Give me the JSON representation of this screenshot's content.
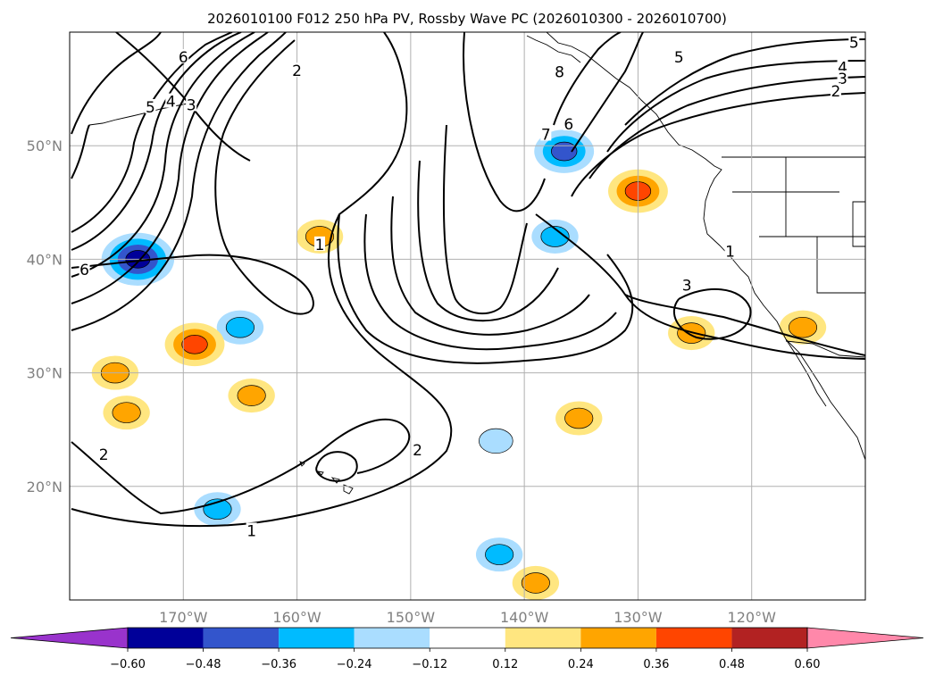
{
  "chart_data": {
    "type": "contour-map",
    "title": "2026010100 F012 250 hPa PV, Rossby Wave PC (2026010300 - 2026010700)",
    "x_axis": {
      "ticks": [
        -170,
        -160,
        -150,
        -140,
        -130,
        -120
      ],
      "tick_labels": [
        "170°W",
        "160°W",
        "150°W",
        "140°W",
        "130°W",
        "120°W"
      ],
      "range": [
        -180,
        -110
      ]
    },
    "y_axis": {
      "ticks": [
        20,
        30,
        40,
        50
      ],
      "tick_labels": [
        "20°N",
        "30°N",
        "40°N",
        "50°N"
      ],
      "range": [
        10,
        60
      ]
    },
    "contour_labels": [
      {
        "text": "6",
        "lon": -170,
        "lat": 57.8
      },
      {
        "text": "5",
        "lon": -172.9,
        "lat": 53.4
      },
      {
        "text": "4",
        "lon": -171.1,
        "lat": 53.9
      },
      {
        "text": "3",
        "lon": -169.3,
        "lat": 53.6
      },
      {
        "text": "2",
        "lon": -160,
        "lat": 56.6
      },
      {
        "text": "1",
        "lon": -158,
        "lat": 41.3
      },
      {
        "text": "6",
        "lon": -178.7,
        "lat": 39.1
      },
      {
        "text": "2",
        "lon": -177,
        "lat": 22.8
      },
      {
        "text": "1",
        "lon": -164,
        "lat": 16.1
      },
      {
        "text": "2",
        "lon": -149.4,
        "lat": 23.2
      },
      {
        "text": "8",
        "lon": -136.9,
        "lat": 56.5
      },
      {
        "text": "7",
        "lon": -138.1,
        "lat": 51
      },
      {
        "text": "6",
        "lon": -136.1,
        "lat": 51.9
      },
      {
        "text": "5",
        "lon": -126.4,
        "lat": 57.8
      },
      {
        "text": "5",
        "lon": -111,
        "lat": 59.1
      },
      {
        "text": "4",
        "lon": -112,
        "lat": 56.9
      },
      {
        "text": "3",
        "lon": -112,
        "lat": 55.9
      },
      {
        "text": "2",
        "lon": -112.6,
        "lat": 54.8
      },
      {
        "text": "1",
        "lon": -121.9,
        "lat": 40.7
      },
      {
        "text": "3",
        "lon": -125.7,
        "lat": 37.7
      }
    ],
    "shaded_anomalies": [
      {
        "sign": "negative",
        "lon": -174,
        "lat": 40,
        "min_value": -0.6
      },
      {
        "sign": "negative",
        "lon": -136.5,
        "lat": 49.5,
        "min_value": -0.48
      },
      {
        "sign": "negative",
        "lon": -165,
        "lat": 34,
        "min_value": -0.36
      },
      {
        "sign": "negative",
        "lon": -167,
        "lat": 18,
        "min_value": -0.36
      },
      {
        "sign": "negative",
        "lon": -137.3,
        "lat": 42,
        "min_value": -0.36
      },
      {
        "sign": "negative",
        "lon": -142.5,
        "lat": 24,
        "min_value": -0.24
      },
      {
        "sign": "negative",
        "lon": -142.2,
        "lat": 14,
        "min_value": -0.36
      },
      {
        "sign": "positive",
        "lon": -169,
        "lat": 32.5,
        "max_value": 0.48
      },
      {
        "sign": "positive",
        "lon": -176,
        "lat": 30,
        "max_value": 0.36
      },
      {
        "sign": "positive",
        "lon": -164,
        "lat": 28,
        "max_value": 0.36
      },
      {
        "sign": "positive",
        "lon": -130,
        "lat": 46,
        "max_value": 0.48
      },
      {
        "sign": "positive",
        "lon": -139,
        "lat": 11.5,
        "max_value": 0.36
      },
      {
        "sign": "positive",
        "lon": -115.5,
        "lat": 34,
        "max_value": 0.36
      },
      {
        "sign": "positive",
        "lon": -125.3,
        "lat": 33.5,
        "max_value": 0.36
      },
      {
        "sign": "positive",
        "lon": -158,
        "lat": 42,
        "max_value": 0.36
      },
      {
        "sign": "positive",
        "lon": -175,
        "lat": 26.5,
        "max_value": 0.36
      },
      {
        "sign": "positive",
        "lon": -135.2,
        "lat": 26,
        "max_value": 0.36
      }
    ],
    "colorbar": {
      "ticks": [
        -0.6,
        -0.48,
        -0.36,
        -0.24,
        -0.12,
        0.12,
        0.24,
        0.36,
        0.48,
        0.6
      ],
      "tick_labels": [
        "−0.60",
        "−0.48",
        "−0.36",
        "−0.24",
        "−0.12",
        "0.12",
        "0.24",
        "0.36",
        "0.48",
        "0.60"
      ],
      "colors": [
        "#9933cc",
        "#000099",
        "#3355cc",
        "#00bbff",
        "#aaddff",
        "#ffffff",
        "#ffe680",
        "#ffa500",
        "#ff4500",
        "#b22222",
        "#ff88aa"
      ],
      "extend": "both"
    }
  }
}
